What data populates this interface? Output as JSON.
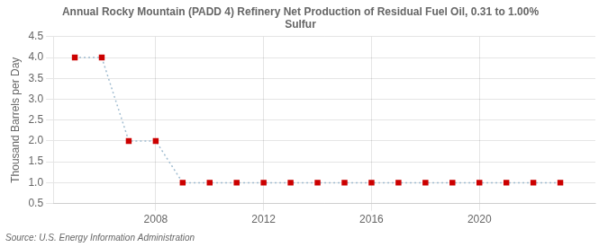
{
  "chart_data": {
    "type": "line",
    "title": "Annual Rocky Mountain (PADD 4) Refinery Net Production of Residual Fuel Oil, 0.31 to 1.00%\nSulfur",
    "ylabel": "Thousand Barrels per Day",
    "source": "Source: U.S. Energy Information Administration",
    "x": [
      2005,
      2006,
      2007,
      2008,
      2009,
      2010,
      2011,
      2012,
      2013,
      2014,
      2015,
      2016,
      2017,
      2018,
      2019,
      2020,
      2021,
      2022,
      2023
    ],
    "values": [
      4.0,
      4.0,
      2.0,
      2.0,
      1.0,
      1.0,
      1.0,
      1.0,
      1.0,
      1.0,
      1.0,
      1.0,
      1.0,
      1.0,
      1.0,
      1.0,
      1.0,
      1.0,
      1.0
    ],
    "color": "#a0bcd0",
    "colors": [
      "#cc0000",
      "#cc0000",
      "#cc0000",
      "#cc0000",
      "#cc0000",
      "#cc0000",
      "#cc0000",
      "#cc0000",
      "#cc0000",
      "#cc0000",
      "#cc0000",
      "#cc0000",
      "#cc0000",
      "#cc0000",
      "#cc0000",
      "#cc0000",
      "#cc0000",
      "#cc0000",
      "#cc0000"
    ],
    "marker": "square",
    "line_style": "dotted",
    "xlim": [
      2004.2,
      2024.3
    ],
    "xticks": [
      2008,
      2012,
      2016,
      2020
    ],
    "ylim": [
      0.5,
      4.5
    ],
    "yticks": [
      0.5,
      {
        "value": 1.0,
        "label": "1.0"
      },
      1.5,
      {
        "value": 2.0,
        "label": "2.0"
      },
      2.5,
      {
        "value": 3.0,
        "label": "3.0"
      },
      3.5,
      {
        "value": 4.0,
        "label": "4.0"
      },
      4.5
    ],
    "grid": true
  }
}
